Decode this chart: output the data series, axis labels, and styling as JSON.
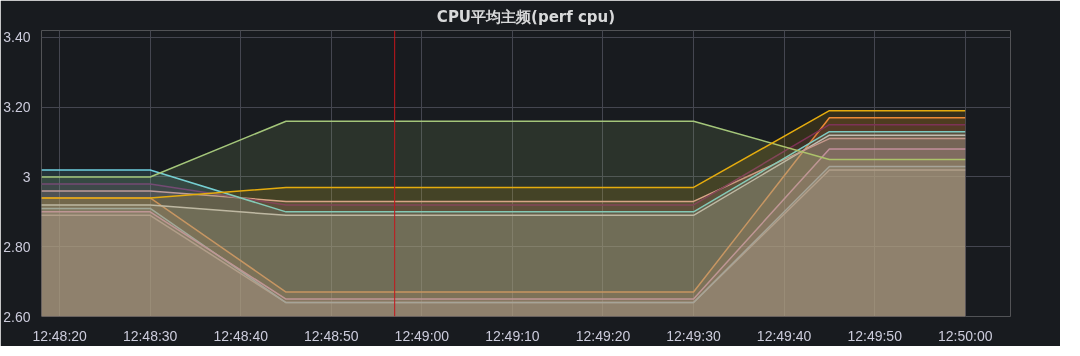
{
  "chart_data": {
    "type": "area",
    "title": "CPU平均主频(perf cpu)",
    "x": [
      12.805,
      12.808333,
      12.8125,
      12.816667,
      12.820833,
      12.825,
      12.829167,
      12.833333
    ],
    "series": [
      {
        "color": "#b59aa3",
        "values": [
          2.89,
          2.89,
          2.64,
          2.64,
          2.64,
          2.64,
          3.02,
          3.02
        ]
      },
      {
        "color": "#82b5d8",
        "values": [
          2.91,
          2.91,
          2.64,
          2.64,
          2.64,
          2.64,
          3.03,
          3.03
        ]
      },
      {
        "color": "#d683ce",
        "values": [
          2.9,
          2.9,
          2.65,
          2.65,
          2.65,
          2.65,
          3.08,
          3.08
        ]
      },
      {
        "color": "#ef843c",
        "values": [
          2.94,
          2.94,
          2.67,
          2.67,
          2.67,
          2.67,
          3.17,
          3.17
        ]
      },
      {
        "color": "#d8d9da",
        "values": [
          2.92,
          2.92,
          2.89,
          2.89,
          2.89,
          2.89,
          3.12,
          3.12
        ]
      },
      {
        "color": "#e0a0a0",
        "values": [
          2.96,
          2.96,
          2.93,
          2.93,
          2.93,
          2.93,
          3.11,
          3.11
        ]
      },
      {
        "color": "#6d1f62",
        "values": [
          2.98,
          2.98,
          2.92,
          2.92,
          2.92,
          2.92,
          3.15,
          3.15
        ]
      },
      {
        "color": "#6ed0e0",
        "values": [
          3.02,
          3.02,
          2.9,
          2.9,
          2.9,
          2.9,
          3.13,
          3.13
        ]
      },
      {
        "color": "#a4c67a",
        "values": [
          3.0,
          3.0,
          3.16,
          3.16,
          3.16,
          3.16,
          3.05,
          3.05
        ]
      },
      {
        "color": "#e5ac0e",
        "values": [
          2.94,
          2.94,
          2.97,
          2.97,
          2.97,
          2.97,
          3.19,
          3.19
        ]
      }
    ],
    "xlim": [
      12.805,
      12.834722
    ],
    "xticks": [
      {
        "value": 12.805556,
        "label": "12:48:20"
      },
      {
        "value": 12.808333,
        "label": "12:48:30"
      },
      {
        "value": 12.811111,
        "label": "12:48:40"
      },
      {
        "value": 12.813889,
        "label": "12:48:50"
      },
      {
        "value": 12.816667,
        "label": "12:49:00"
      },
      {
        "value": 12.819444,
        "label": "12:49:10"
      },
      {
        "value": 12.822222,
        "label": "12:49:20"
      },
      {
        "value": 12.825,
        "label": "12:49:30"
      },
      {
        "value": 12.827778,
        "label": "12:49:40"
      },
      {
        "value": 12.830556,
        "label": "12:49:50"
      },
      {
        "value": 12.833333,
        "label": "12:50:00"
      }
    ],
    "ylim": [
      2.6,
      3.42
    ],
    "yticks": [
      {
        "value": 2.6,
        "label": "2.60"
      },
      {
        "value": 2.8,
        "label": "2.80"
      },
      3,
      {
        "value": 3.2,
        "label": "3.20"
      },
      {
        "value": 3.4,
        "label": "3.40"
      }
    ],
    "ref_lines": [
      {
        "axis": "x",
        "value": 12.815833,
        "color": "#c4161c"
      }
    ],
    "grid": true
  }
}
